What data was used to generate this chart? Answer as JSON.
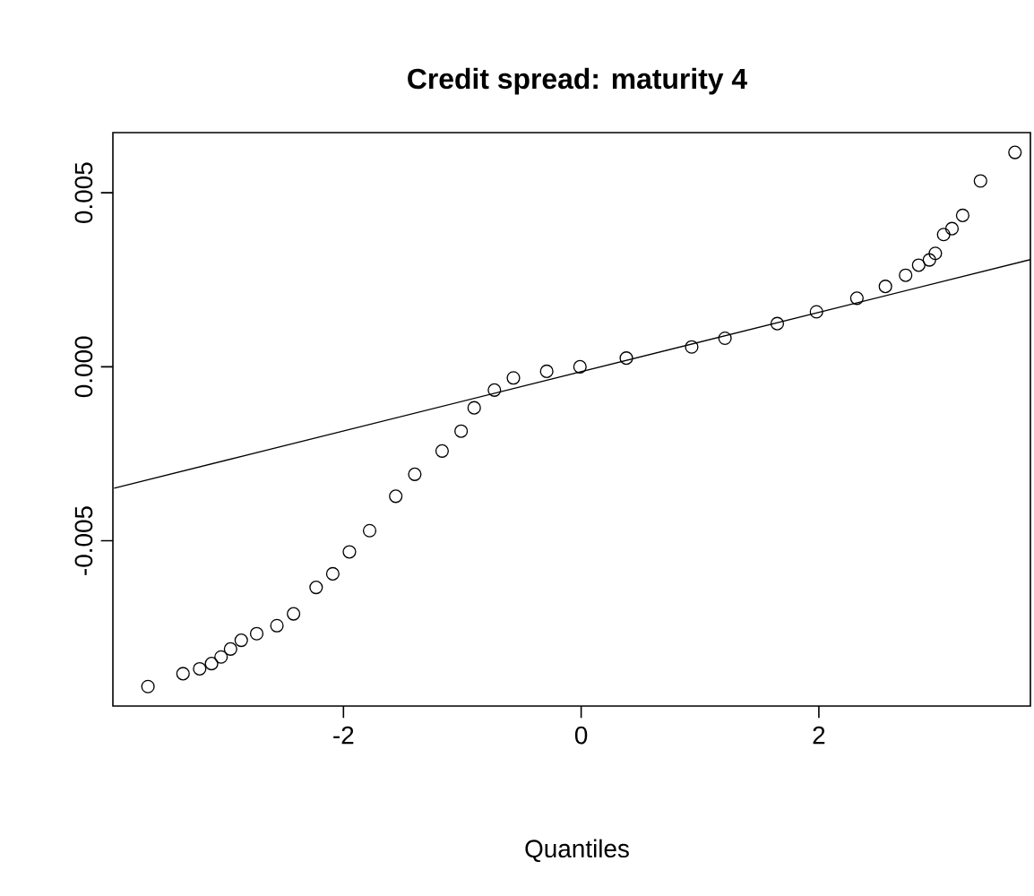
{
  "chart_data": {
    "type": "scatter",
    "title": "Credit spread: maturity 4",
    "xlabel": "Quantiles",
    "xlim": [
      -3.94,
      3.78
    ],
    "ylim": [
      -0.00975,
      0.00673
    ],
    "xticks": [
      -2,
      0,
      2
    ],
    "yticks": [
      {
        "value": -0.005,
        "label": "-0.005"
      },
      {
        "value": 0,
        "label": "0.000"
      },
      {
        "value": 0.005,
        "label": "0.005"
      }
    ],
    "grid": false,
    "marker": "circle",
    "series": [
      {
        "type": "scatter",
        "color": "#000000",
        "x": [
          -3.645,
          -3.35,
          -3.21,
          -3.11,
          -3.03,
          -2.95,
          -2.86,
          -2.73,
          -2.56,
          -2.42,
          -2.23,
          -2.09,
          -1.95,
          -1.78,
          -1.56,
          -1.4,
          -1.17,
          -1.01,
          -0.9,
          -0.73,
          -0.57,
          -0.29,
          -0.01,
          0.38,
          0.93,
          1.21,
          1.65,
          1.98,
          2.32,
          2.56,
          2.73,
          2.84,
          2.93,
          2.98,
          3.05,
          3.12,
          3.21,
          3.36,
          3.65
        ],
        "values": [
          -0.00919,
          -0.00882,
          -0.00868,
          -0.00853,
          -0.00834,
          -0.00811,
          -0.00786,
          -0.00767,
          -0.00744,
          -0.0071,
          -0.00634,
          -0.00595,
          -0.00532,
          -0.00471,
          -0.00372,
          -0.00309,
          -0.00242,
          -0.00185,
          -0.00118,
          -0.00067,
          -0.00032,
          -0.00013,
          0,
          0.00025,
          0.00057,
          0.00082,
          0.00124,
          0.00158,
          0.00197,
          0.00231,
          0.00263,
          0.00292,
          0.00307,
          0.00326,
          0.0038,
          0.00397,
          0.00435,
          0.00534,
          0.00616
        ]
      },
      {
        "type": "line",
        "color": "#000000",
        "marker": "none",
        "line_style": "solid",
        "x": [
          -3.93,
          3.78
        ],
        "values": [
          -0.00349,
          0.00308
        ]
      }
    ]
  }
}
